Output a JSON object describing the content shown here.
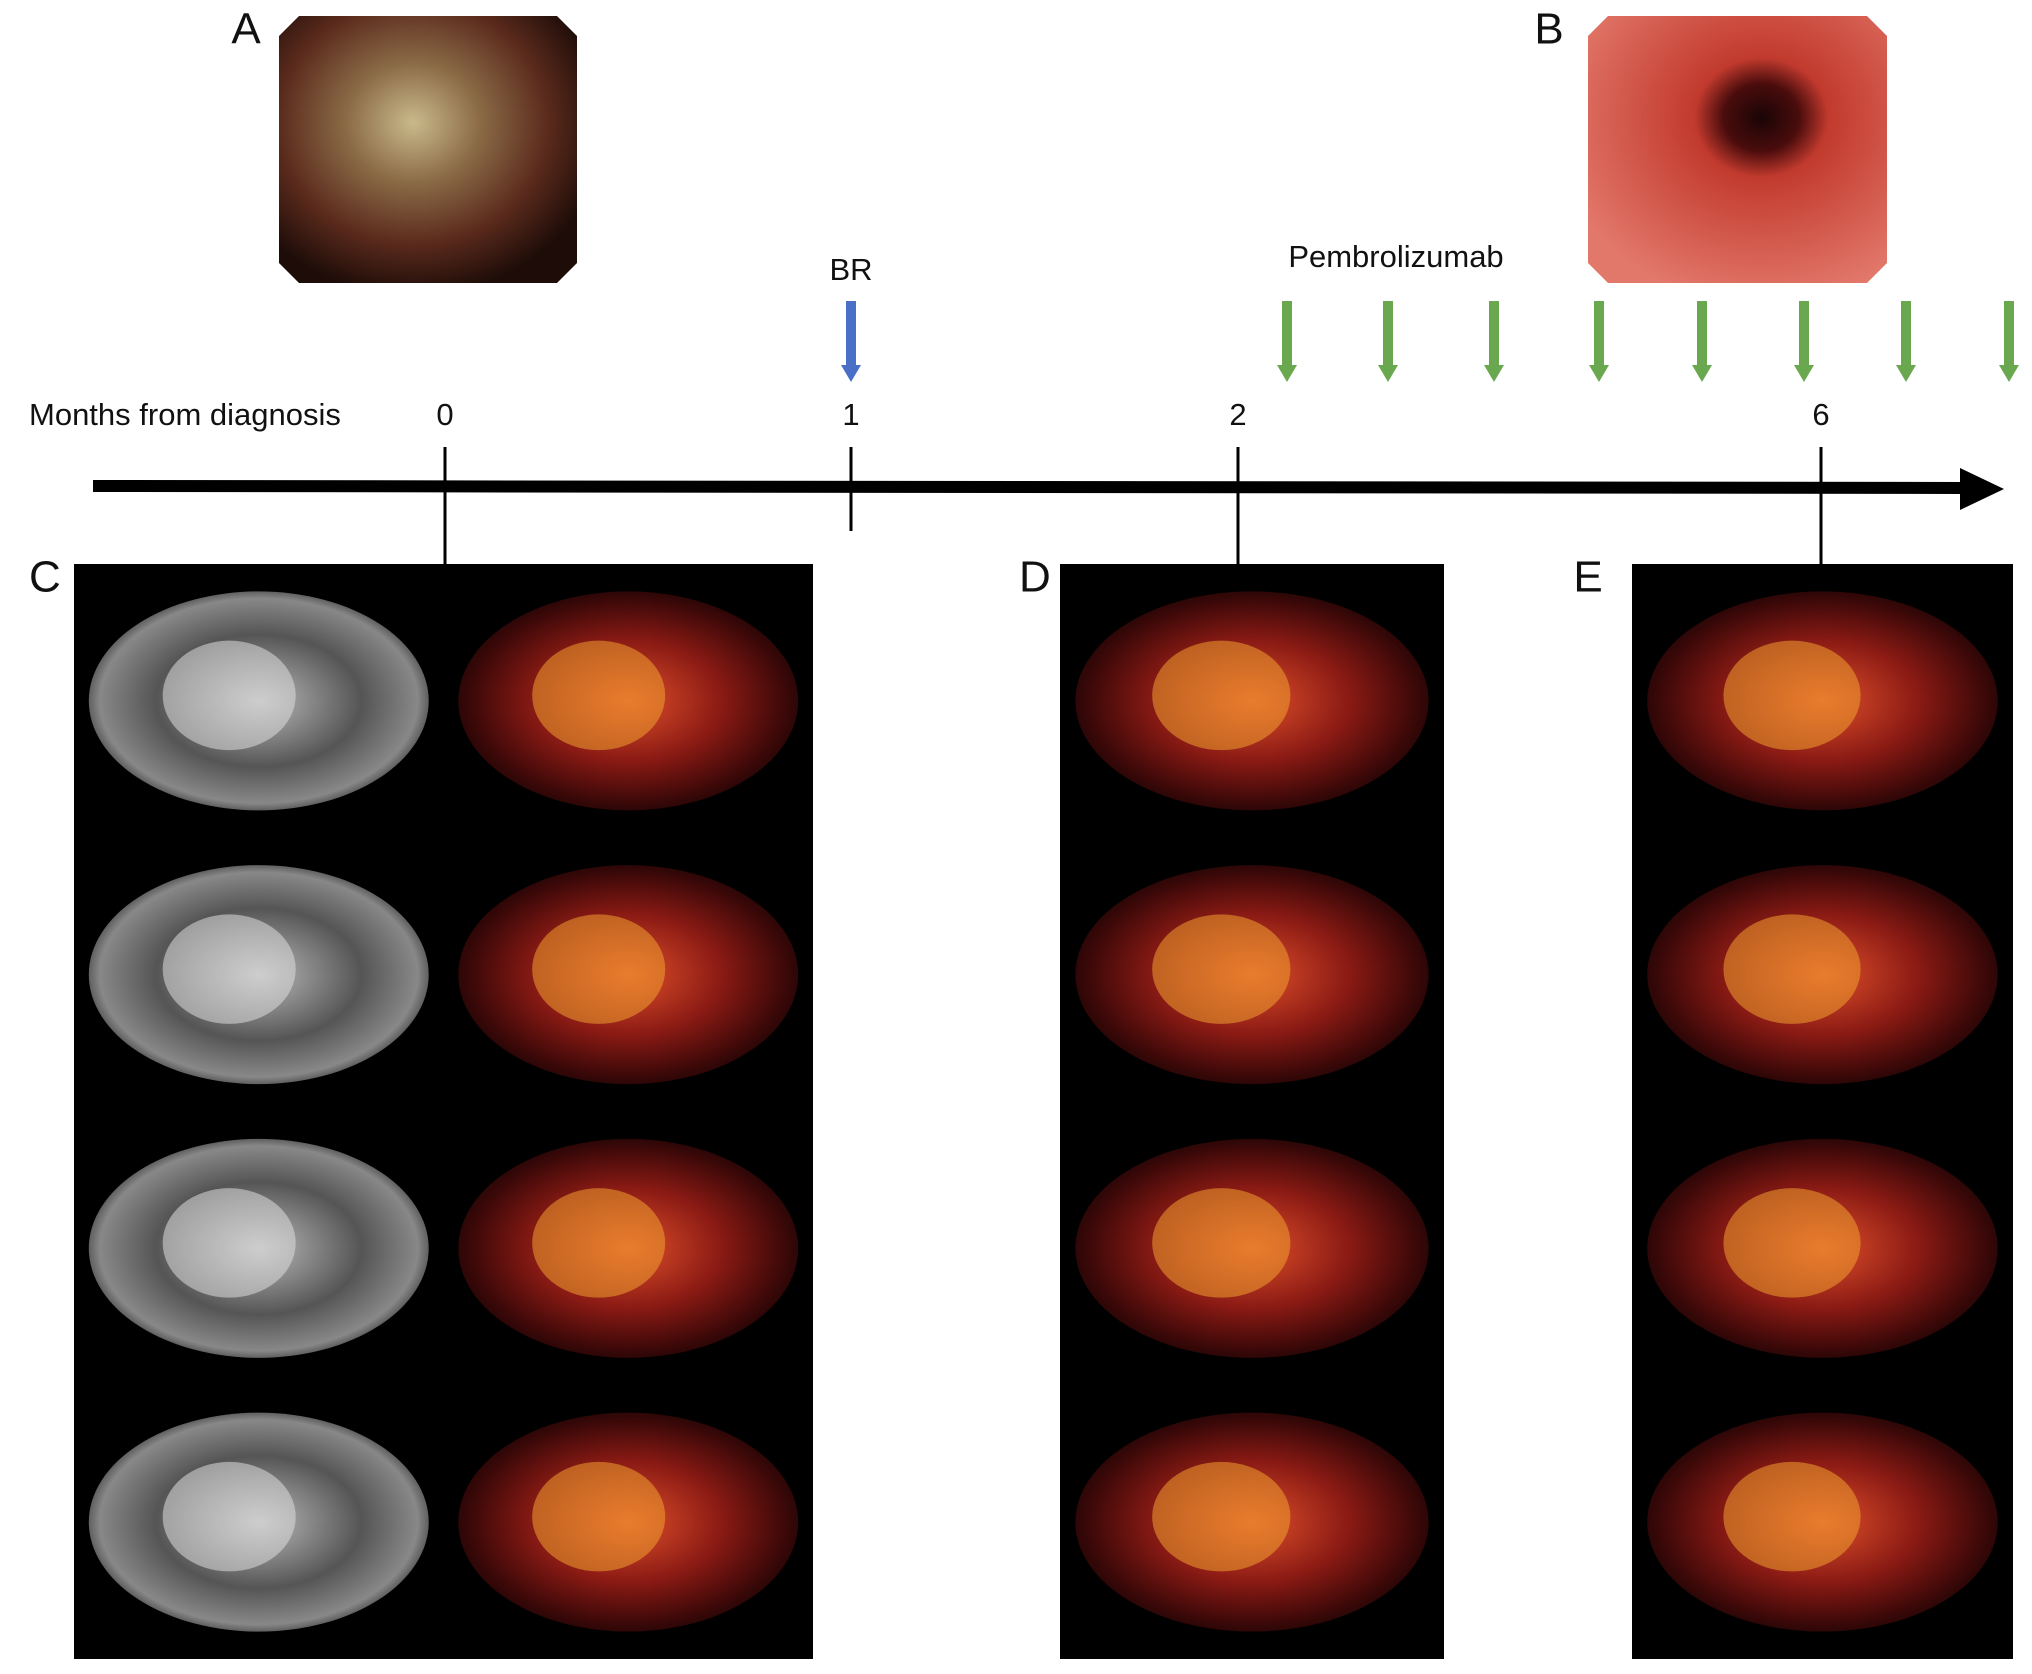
{
  "panels": {
    "a": "A",
    "b": "B",
    "c": "C",
    "d": "D",
    "e": "E"
  },
  "events": {
    "biopsy": "BR",
    "treatment": "Pembrolizumab"
  },
  "timeline": {
    "label": "Months from diagnosis",
    "ticks": [
      "0",
      "1",
      "2",
      "6"
    ]
  }
}
